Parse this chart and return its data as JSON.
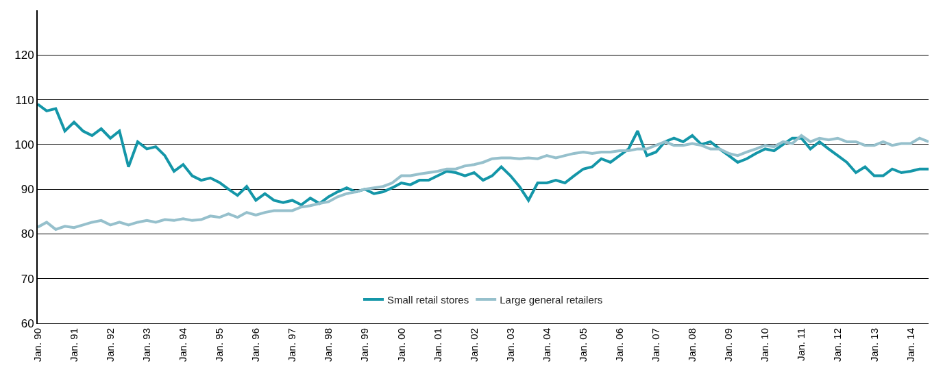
{
  "chart_data": {
    "type": "line",
    "x": [
      "1990-01",
      "1990-04",
      "1990-07",
      "1990-10",
      "1991-01",
      "1991-04",
      "1991-07",
      "1991-10",
      "1992-01",
      "1992-04",
      "1992-07",
      "1992-10",
      "1993-01",
      "1993-04",
      "1993-07",
      "1993-10",
      "1994-01",
      "1994-04",
      "1994-07",
      "1994-10",
      "1995-01",
      "1995-04",
      "1995-07",
      "1995-10",
      "1996-01",
      "1996-04",
      "1996-07",
      "1996-10",
      "1997-01",
      "1997-04",
      "1997-07",
      "1997-10",
      "1998-01",
      "1998-04",
      "1998-07",
      "1998-10",
      "1999-01",
      "1999-04",
      "1999-07",
      "1999-10",
      "2000-01",
      "2000-04",
      "2000-07",
      "2000-10",
      "2001-01",
      "2001-04",
      "2001-07",
      "2001-10",
      "2002-01",
      "2002-04",
      "2002-07",
      "2002-10",
      "2003-01",
      "2003-04",
      "2003-07",
      "2003-10",
      "2004-01",
      "2004-04",
      "2004-07",
      "2004-10",
      "2005-01",
      "2005-04",
      "2005-07",
      "2005-10",
      "2006-01",
      "2006-04",
      "2006-07",
      "2006-10",
      "2007-01",
      "2007-04",
      "2007-07",
      "2007-10",
      "2008-01",
      "2008-04",
      "2008-07",
      "2008-10",
      "2009-01",
      "2009-04",
      "2009-07",
      "2009-10",
      "2010-01",
      "2010-04",
      "2010-07",
      "2010-10",
      "2011-01",
      "2011-04",
      "2011-07",
      "2011-10",
      "2012-01",
      "2012-04",
      "2012-07",
      "2012-10",
      "2013-01",
      "2013-04",
      "2013-07",
      "2013-10",
      "2014-01",
      "2014-04",
      "2014-07"
    ],
    "series": [
      {
        "name": "Small retail stores",
        "color": "#1496a8",
        "values": [
          109,
          107.5,
          108,
          103,
          105,
          103,
          102,
          103.5,
          101.4,
          103,
          95,
          100.6,
          99,
          99.5,
          97.5,
          94,
          95.5,
          93,
          92,
          92.5,
          91.5,
          90,
          88.6,
          90.6,
          87.5,
          89,
          87.5,
          87,
          87.5,
          86.5,
          88,
          86.8,
          88.3,
          89.4,
          90.3,
          89.4,
          90,
          89,
          89.4,
          90.3,
          91.4,
          91,
          92,
          92,
          93,
          94,
          93.7,
          93,
          93.7,
          92,
          93,
          95,
          93,
          90.6,
          87.5,
          91.4,
          91.4,
          92,
          91.4,
          93,
          94.5,
          95,
          96.8,
          96,
          97.5,
          99,
          103,
          97.5,
          98.3,
          100.6,
          101.4,
          100.6,
          102,
          100,
          100.6,
          99,
          97.5,
          96,
          96.8,
          98,
          99,
          98.6,
          100,
          101.4,
          101.4,
          99,
          100.6,
          99,
          97.5,
          96,
          93.7,
          95,
          93,
          93,
          94.5,
          93.7,
          94,
          94.5,
          94.5
        ]
      },
      {
        "name": "Large general retailers",
        "color": "#96c0cc",
        "values": [
          81.5,
          82.6,
          81,
          81.7,
          81.4,
          82,
          82.6,
          83,
          82,
          82.6,
          82,
          82.6,
          83,
          82.6,
          83.2,
          83,
          83.4,
          83,
          83.2,
          84,
          83.7,
          84.5,
          83.7,
          84.8,
          84.2,
          84.8,
          85.2,
          85.2,
          85.2,
          86,
          86.3,
          86.8,
          87.2,
          88.3,
          89,
          89.4,
          90,
          90.3,
          90.6,
          91.4,
          93,
          93,
          93.4,
          93.7,
          94,
          94.5,
          94.5,
          95.2,
          95.5,
          96,
          96.8,
          97,
          97,
          96.8,
          97,
          96.8,
          97.5,
          97,
          97.5,
          98,
          98.3,
          98,
          98.3,
          98.3,
          98.6,
          98.6,
          99,
          99,
          99.8,
          100.6,
          99.8,
          99.8,
          100.2,
          99.8,
          99,
          99,
          98,
          97.5,
          98.3,
          99,
          99.8,
          99.5,
          100.6,
          100.2,
          102,
          100.6,
          101.4,
          101,
          101.4,
          100.6,
          100.6,
          99.8,
          99.8,
          100.6,
          99.8,
          100.2,
          100.2,
          101.4,
          100.6
        ]
      }
    ],
    "xlim": [
      "1990-01",
      "2014-07"
    ],
    "xticks": [
      {
        "value": "1990-01",
        "label": "Jan. 90"
      },
      {
        "value": "1991-01",
        "label": "Jan. 91"
      },
      {
        "value": "1992-01",
        "label": "Jan. 92"
      },
      {
        "value": "1993-01",
        "label": "Jan. 93"
      },
      {
        "value": "1994-01",
        "label": "Jan. 94"
      },
      {
        "value": "1995-01",
        "label": "Jan. 95"
      },
      {
        "value": "1996-01",
        "label": "Jan. 96"
      },
      {
        "value": "1997-01",
        "label": "Jan. 97"
      },
      {
        "value": "1998-01",
        "label": "Jan. 98"
      },
      {
        "value": "1999-01",
        "label": "Jan. 99"
      },
      {
        "value": "2000-01",
        "label": "Jan. 00"
      },
      {
        "value": "2001-01",
        "label": "Jan. 01"
      },
      {
        "value": "2002-01",
        "label": "Jan. 02"
      },
      {
        "value": "2003-01",
        "label": "Jan. 03"
      },
      {
        "value": "2004-01",
        "label": "Jan. 04"
      },
      {
        "value": "2005-01",
        "label": "Jan. 05"
      },
      {
        "value": "2006-01",
        "label": "Jan. 06"
      },
      {
        "value": "2007-01",
        "label": "Jan. 07"
      },
      {
        "value": "2008-01",
        "label": "Jan. 08"
      },
      {
        "value": "2009-01",
        "label": "Jan. 09"
      },
      {
        "value": "2010-01",
        "label": "Jan. 10"
      },
      {
        "value": "2011-01",
        "label": "Jan. 11"
      },
      {
        "value": "2012-01",
        "label": "Jan. 12"
      },
      {
        "value": "2013-01",
        "label": "Jan. 13"
      },
      {
        "value": "2014-01",
        "label": "Jan. 14"
      }
    ],
    "ylim": [
      60,
      130
    ],
    "yticks": [
      60,
      70,
      80,
      90,
      100,
      110,
      120
    ],
    "grid": "y",
    "legend": "bottom",
    "marker": "none",
    "line_style": "solid"
  }
}
